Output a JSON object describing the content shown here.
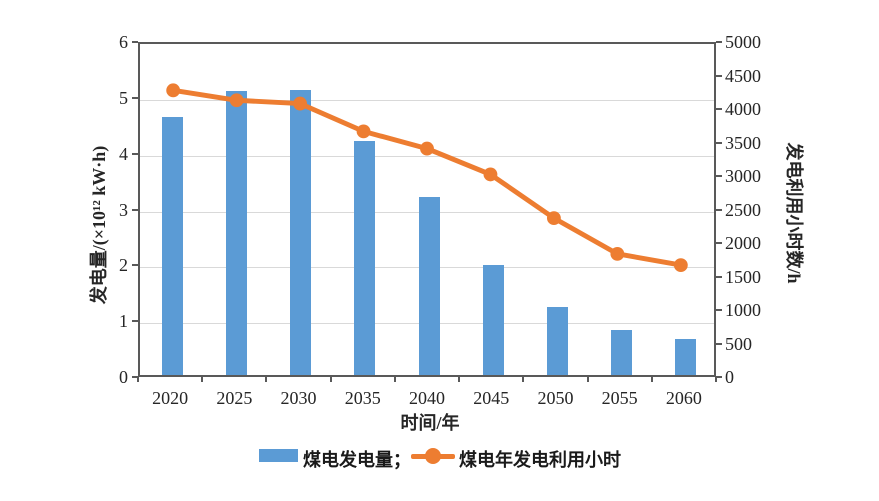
{
  "chart_data": {
    "type": "bar+line",
    "categories": [
      "2020",
      "2025",
      "2030",
      "2035",
      "2040",
      "2045",
      "2050",
      "2055",
      "2060"
    ],
    "series": [
      {
        "name": "煤电发电量",
        "type": "bar",
        "axis": "left",
        "values": [
          4.62,
          5.08,
          5.1,
          4.2,
          3.19,
          1.97,
          1.22,
          0.8,
          0.65
        ]
      },
      {
        "name": "煤电年发电利用小时",
        "type": "line",
        "axis": "right",
        "values": [
          4300,
          4150,
          4100,
          3680,
          3420,
          3030,
          2370,
          1830,
          1660
        ]
      }
    ],
    "left_axis": {
      "label": "发电量/(×10¹² kW·h)",
      "min": 0,
      "max": 6,
      "ticks": [
        "0",
        "1",
        "2",
        "3",
        "4",
        "5",
        "6"
      ]
    },
    "right_axis": {
      "label": "发电利用小时数/h",
      "min": 0,
      "max": 5000,
      "ticks": [
        "0",
        "500",
        "1000",
        "1500",
        "2000",
        "2500",
        "3000",
        "3500",
        "4000",
        "4500",
        "5000"
      ]
    },
    "x_axis": {
      "label": "时间/年"
    },
    "legend": [
      {
        "label": "煤电发电量；",
        "marker": "bar-swatch"
      },
      {
        "label": "煤电年发电利用小时",
        "marker": "line-dot"
      }
    ],
    "grid": true
  },
  "colors": {
    "bar": "#5B9BD5",
    "line": "#ED7D31",
    "grid": "#d9d9d9",
    "axis": "#595959",
    "text": "#262626",
    "background": "#ffffff"
  }
}
